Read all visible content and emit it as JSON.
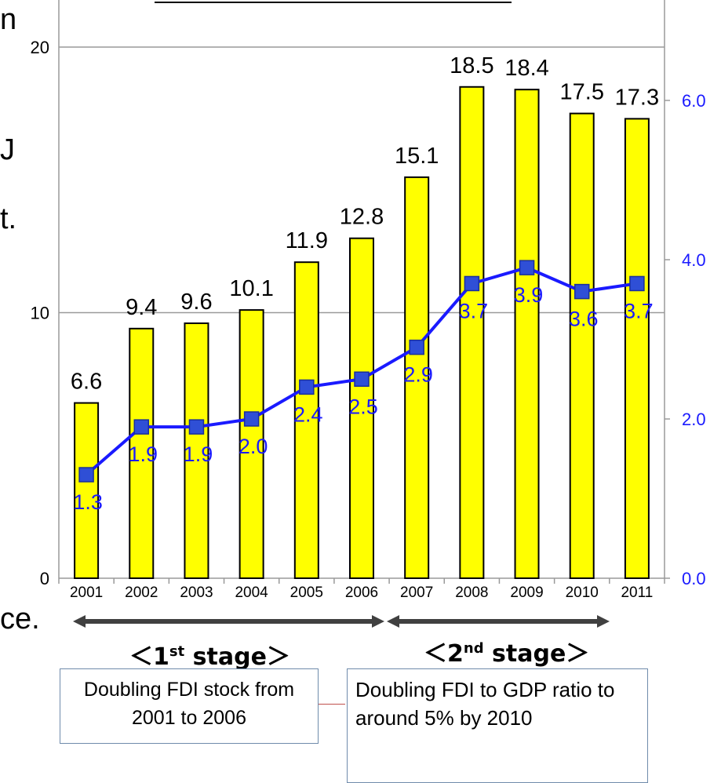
{
  "left_fragments": [
    "n",
    "J",
    "t.",
    "ce."
  ],
  "chart_data": {
    "type": "bar",
    "categories": [
      "2001",
      "2002",
      "2003",
      "2004",
      "2005",
      "2006",
      "2007",
      "2008",
      "2009",
      "2010",
      "2011"
    ],
    "series": [
      {
        "kind": "bar",
        "axis": "left",
        "values": [
          6.6,
          9.4,
          9.6,
          10.1,
          11.9,
          12.8,
          15.1,
          18.5,
          18.4,
          17.5,
          17.3
        ],
        "value_labels": [
          "6.6",
          "9.4",
          "9.6",
          "10.1",
          "11.9",
          "12.8",
          "15.1",
          "18.5",
          "18.4",
          "17.5",
          "17.3"
        ]
      },
      {
        "kind": "line",
        "axis": "right",
        "values": [
          1.3,
          1.9,
          1.9,
          2.0,
          2.4,
          2.5,
          2.9,
          3.7,
          3.9,
          3.6,
          3.7
        ],
        "value_labels": [
          "1.3",
          "1.9",
          "1.9",
          "2.0",
          "2.4",
          "2.5",
          "2.9",
          "3.7",
          "3.9",
          "3.6",
          "3.7"
        ]
      }
    ],
    "y_left": {
      "range": [
        0,
        20
      ],
      "ticks": [
        "0",
        "10",
        "20"
      ]
    },
    "y_right": {
      "range": [
        0,
        7
      ],
      "ticks": [
        "0.0",
        "2.0",
        "4.0",
        "6.0"
      ]
    },
    "grid": true,
    "colors": {
      "bar_fill": "#ffff00",
      "bar_stroke": "#000000",
      "line": "#1a1aff",
      "marker": "#2f4fd6",
      "right_axis_text": "#1a1aff",
      "arrow": "#404040"
    }
  },
  "stages": [
    {
      "label_prefix": "＜1",
      "label_sup": "st",
      "label_suffix": " stage＞",
      "note": "Doubling FDI stock from 2001 to 2006"
    },
    {
      "label_prefix": "＜2",
      "label_sup": "nd",
      "label_suffix": " stage＞",
      "note": "Doubling FDI to GDP ratio to around 5% by 2010"
    }
  ]
}
